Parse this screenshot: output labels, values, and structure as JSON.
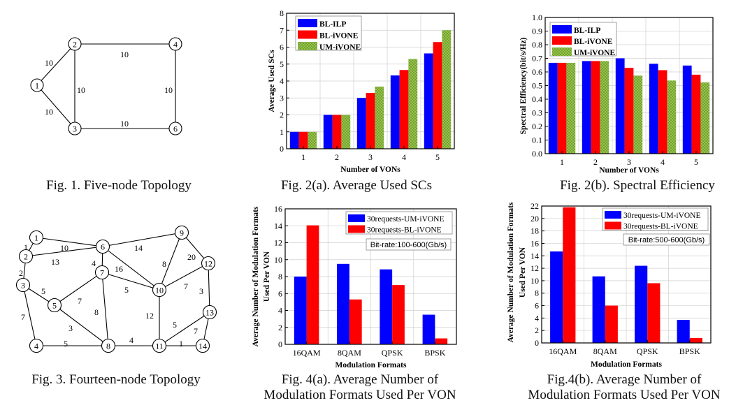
{
  "captions": {
    "fig1": "Fig. 1. Five-node Topology",
    "fig2a": "Fig. 2(a). Average Used SCs",
    "fig2b": "Fig. 2(b). Spectral Efficiency",
    "fig3": "Fig. 3. Fourteen-node Topology",
    "fig4a_line1": "Fig. 4(a). Average Number of",
    "fig4a_line2": "Modulation Formats Used Per VON",
    "fig4b_line1": "Fig.4(b). Average Number of",
    "fig4b_line2": "Modulation Formats Used Per VON"
  },
  "topologies": [
    {
      "name": "five-node",
      "nodes": [
        "1",
        "2",
        "3",
        "4",
        "6"
      ],
      "edges": [
        {
          "a": "1",
          "b": "2",
          "w": "10"
        },
        {
          "a": "1",
          "b": "3",
          "w": "10"
        },
        {
          "a": "2",
          "b": "4",
          "w": "10"
        },
        {
          "a": "2",
          "b": "3",
          "w": "10"
        },
        {
          "a": "4",
          "b": "6",
          "w": "10"
        },
        {
          "a": "3",
          "b": "6",
          "w": "10"
        }
      ]
    },
    {
      "name": "fourteen-node",
      "nodes": [
        "1",
        "2",
        "3",
        "4",
        "5",
        "6",
        "7",
        "8",
        "9",
        "10",
        "11",
        "12",
        "13",
        "14"
      ],
      "edges": [
        {
          "a": "1",
          "b": "2",
          "w": "1"
        },
        {
          "a": "1",
          "b": "6",
          "w": "10"
        },
        {
          "a": "2",
          "b": "6",
          "w": "13"
        },
        {
          "a": "2",
          "b": "3",
          "w": "2"
        },
        {
          "a": "3",
          "b": "5",
          "w": "5"
        },
        {
          "a": "3",
          "b": "4",
          "w": "7"
        },
        {
          "a": "6",
          "b": "7",
          "w": "4"
        },
        {
          "a": "6",
          "b": "10",
          "w": "16"
        },
        {
          "a": "6",
          "b": "9",
          "w": "14"
        },
        {
          "a": "9",
          "b": "10",
          "w": "8"
        },
        {
          "a": "9",
          "b": "12",
          "w": "20"
        },
        {
          "a": "10",
          "b": "12",
          "w": "7"
        },
        {
          "a": "12",
          "b": "13",
          "w": "3"
        },
        {
          "a": "7",
          "b": "5",
          "w": "7"
        },
        {
          "a": "7",
          "b": "10",
          "w": "5"
        },
        {
          "a": "7",
          "b": "8",
          "w": "8"
        },
        {
          "a": "5",
          "b": "8",
          "w": "3"
        },
        {
          "a": "4",
          "b": "8",
          "w": "5"
        },
        {
          "a": "8",
          "b": "11",
          "w": "4"
        },
        {
          "a": "10",
          "b": "11",
          "w": "12"
        },
        {
          "a": "11",
          "b": "13",
          "w": "5"
        },
        {
          "a": "11",
          "b": "14",
          "w": "7"
        },
        {
          "a": "13",
          "b": "14",
          "w": "1"
        }
      ]
    }
  ],
  "chart_data": [
    {
      "id": "fig2a",
      "type": "bar",
      "categories": [
        "1",
        "2",
        "3",
        "4",
        "5"
      ],
      "series": [
        {
          "name": "BL-ILP",
          "color": "#0000ff",
          "values": [
            1,
            2,
            3,
            4.33,
            5.63
          ]
        },
        {
          "name": "BL-iVONE",
          "color": "#ff0000",
          "values": [
            1,
            2,
            3.3,
            4.65,
            6.3
          ]
        },
        {
          "name": "UM-iVONE",
          "color": "#8cbf3f",
          "pattern": "crosshatch",
          "values": [
            1,
            2,
            3.67,
            5.3,
            7
          ]
        }
      ],
      "xlabel": "Number of VONs",
      "ylabel": [
        "Average Used SCs"
      ],
      "ylim": [
        0,
        8
      ],
      "ystep": 1,
      "ydecimals": 0,
      "yticks": [
        "0",
        "1",
        "2",
        "3",
        "4",
        "5",
        "6",
        "7",
        "8"
      ],
      "grid": true,
      "legend": "top-left",
      "annotation": null
    },
    {
      "id": "fig2b",
      "type": "bar",
      "categories": [
        "1",
        "2",
        "3",
        "4",
        "5"
      ],
      "series": [
        {
          "name": "BL-ILP",
          "color": "#0000ff",
          "values": [
            0.667,
            0.68,
            0.7,
            0.66,
            0.647
          ]
        },
        {
          "name": "BL-iVONE",
          "color": "#ff0000",
          "values": [
            0.667,
            0.68,
            0.63,
            0.613,
            0.58
          ]
        },
        {
          "name": "UM-iVONE",
          "color": "#8cbf3f",
          "pattern": "crosshatch",
          "values": [
            0.667,
            0.68,
            0.573,
            0.537,
            0.523
          ]
        }
      ],
      "xlabel": "Number of VONs",
      "ylabel": [
        "Spectral Efficiency(bit/s/Hz)"
      ],
      "ylim": [
        0,
        1
      ],
      "ystep": 0.1,
      "ydecimals": 1,
      "yticks": [
        "0.0",
        "0.1",
        "0.2",
        "0.3",
        "0.4",
        "0.5",
        "0.6",
        "0.7",
        "0.8",
        "0.9",
        "1.0"
      ],
      "grid": true,
      "legend": "top-left",
      "annotation": null
    },
    {
      "id": "fig4a",
      "type": "bar",
      "categories": [
        "16QAM",
        "8QAM",
        "QPSK",
        "BPSK"
      ],
      "series": [
        {
          "name": "30requests-UM-iVONE",
          "color": "#0000ff",
          "values": [
            8,
            9.5,
            8.85,
            3.5
          ]
        },
        {
          "name": "30requests-BL-iVONE",
          "color": "#ff0000",
          "values": [
            14.05,
            5.3,
            7,
            0.7
          ]
        }
      ],
      "xlabel": "Modulation Formats",
      "ylabel": [
        "Average Number of Modulation Formats",
        "Used Per VON"
      ],
      "ylim": [
        0,
        16
      ],
      "ystep": 2,
      "ydecimals": 0,
      "yticks": [
        "0",
        "2",
        "4",
        "6",
        "8",
        "10",
        "12",
        "14",
        "16"
      ],
      "grid": true,
      "legend": "top-right",
      "annotation": "Bit-rate:100-600(Gb/s)"
    },
    {
      "id": "fig4b",
      "type": "bar",
      "categories": [
        "16QAM",
        "8QAM",
        "QPSK",
        "BPSK"
      ],
      "series": [
        {
          "name": "30requests-UM-iVONE",
          "color": "#0000ff",
          "values": [
            14.7,
            10.7,
            12.4,
            3.7
          ]
        },
        {
          "name": "30requests-BL-iVONE",
          "color": "#ff0000",
          "values": [
            21.8,
            6,
            9.6,
            0.8
          ]
        }
      ],
      "xlabel": "Modulation Formats",
      "ylabel": [
        "Average Number of Modulation Formats",
        "Used Per VON"
      ],
      "ylim": [
        0,
        22
      ],
      "ystep": 2,
      "ydecimals": 0,
      "yticks": [
        "0",
        "2",
        "4",
        "6",
        "8",
        "10",
        "12",
        "14",
        "16",
        "18",
        "20",
        "22"
      ],
      "grid": true,
      "legend": "top-right",
      "annotation": "Bit-rate:500-600(Gb/s)"
    }
  ]
}
